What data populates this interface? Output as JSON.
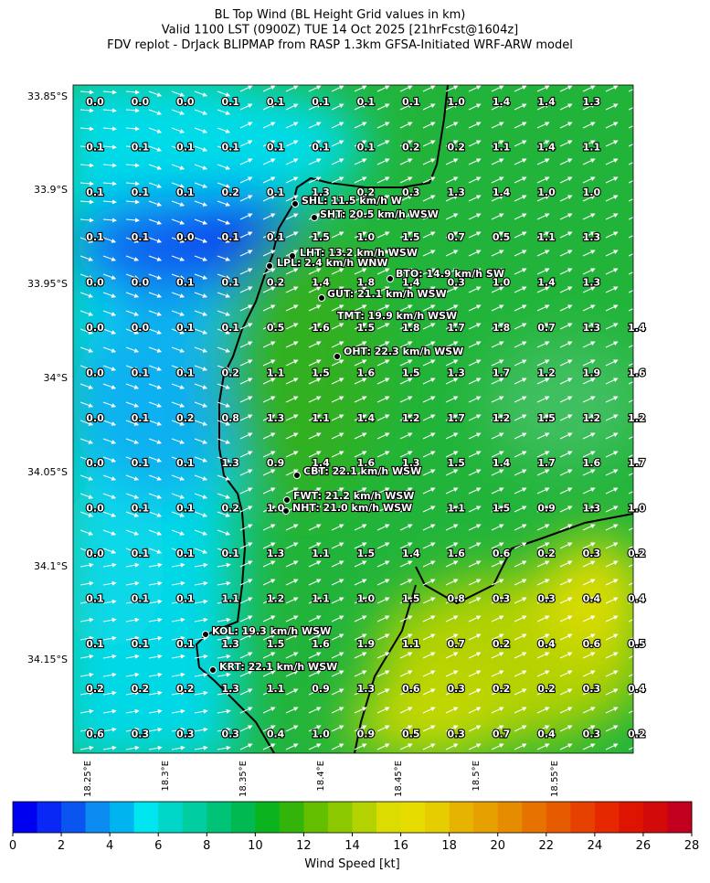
{
  "header": {
    "title_lines": [
      "BL Top Wind (BL Height Grid values in km)",
      "Valid 1100 LST (0900Z) TUE 14 Oct 2025 [21hrFcst@1604z]",
      "FDV replot - DrJack BLIPMAP from RASP 1.3km GFSA-Initiated WRF-ARW model"
    ]
  },
  "lat_labels": [
    "33.85°S",
    "33.9°S",
    "33.95°S",
    "34°S",
    "34.05°S",
    "34.1°S",
    "34.15°S"
  ],
  "lon_labels": [
    "18.25°E",
    "18.3°E",
    "18.35°E",
    "18.4°E",
    "18.45°E",
    "18.5°E",
    "18.55°E"
  ],
  "grid": {
    "rows": [
      [
        "0.0",
        "0.0",
        "0.0",
        "0.1",
        "0.1",
        "0.1",
        "0.1",
        "0.1",
        "1.0",
        "1.4",
        "1.4",
        "1.3",
        null
      ],
      [
        "0.1",
        "0.1",
        "0.1",
        "0.1",
        "0.1",
        "0.1",
        "0.1",
        "0.2",
        "0.2",
        "1.1",
        "1.4",
        "1.1",
        null
      ],
      [
        "0.1",
        "0.1",
        "0.1",
        "0.2",
        "0.1",
        "1.3",
        "0.2",
        "0.3",
        "1.3",
        "1.4",
        "1.0",
        "1.0",
        null
      ],
      [
        "0.1",
        "0.1",
        "0.0",
        "0.1",
        "0.1",
        "1.5",
        "1.0",
        "1.5",
        "0.7",
        "0.5",
        "1.1",
        "1.3",
        null
      ],
      [
        "0.0",
        "0.0",
        "0.1",
        "0.1",
        "0.2",
        "1.4",
        "1.8",
        "1.4",
        "0.3",
        "1.0",
        "1.4",
        "1.3",
        null
      ],
      [
        "0.0",
        "0.0",
        "0.1",
        "0.1",
        "0.5",
        "1.6",
        "1.5",
        "1.8",
        "1.7",
        "1.8",
        "0.7",
        "1.3",
        "1.4"
      ],
      [
        "0.0",
        "0.1",
        "0.1",
        "0.2",
        "1.1",
        "1.5",
        "1.6",
        "1.5",
        "1.3",
        "1.7",
        "1.2",
        "1.9",
        "1.6"
      ],
      [
        "0.0",
        "0.1",
        "0.2",
        "0.8",
        "1.3",
        "1.1",
        "1.4",
        "1.2",
        "1.7",
        "1.2",
        "1.5",
        "1.2",
        "1.2"
      ],
      [
        "0.0",
        "0.1",
        "0.1",
        "1.3",
        "0.9",
        "1.4",
        "1.6",
        "1.3",
        "1.5",
        "1.4",
        "1.7",
        "1.6",
        "1.7"
      ],
      [
        "0.0",
        "0.1",
        "0.1",
        "0.2",
        "1.0",
        null,
        null,
        null,
        "1.1",
        "1.5",
        "0.9",
        "1.3",
        "1.0"
      ],
      [
        "0.0",
        "0.1",
        "0.1",
        "0.1",
        "1.3",
        "1.1",
        "1.5",
        "1.4",
        "1.6",
        "0.6",
        "0.2",
        "0.3",
        "0.2"
      ],
      [
        "0.1",
        "0.1",
        "0.1",
        "1.1",
        "1.2",
        "1.1",
        "1.0",
        "1.5",
        "0.8",
        "0.3",
        "0.3",
        "0.4",
        "0.4"
      ],
      [
        "0.1",
        "0.1",
        "0.1",
        "1.3",
        "1.5",
        "1.6",
        "1.9",
        "1.1",
        "0.7",
        "0.2",
        "0.4",
        "0.6",
        "0.5"
      ],
      [
        "0.2",
        "0.2",
        "0.2",
        "1.3",
        "1.1",
        "0.9",
        "1.3",
        "0.6",
        "0.3",
        "0.2",
        "0.2",
        "0.3",
        "0.4"
      ],
      [
        "0.6",
        "0.3",
        "0.3",
        "0.3",
        "0.4",
        "1.0",
        "0.9",
        "0.5",
        "0.3",
        "0.7",
        "0.4",
        "0.3",
        "0.2"
      ]
    ]
  },
  "stations": [
    {
      "label": "SHL: 11.5 km/h W"
    },
    {
      "label": "SHT: 20.5 km/h WSW"
    },
    {
      "label": "LHT: 13.2 km/h WSW"
    },
    {
      "label": "LPL: 2.4 km/h WNW"
    },
    {
      "label": "BTO: 14.9 km/h SW"
    },
    {
      "label": "GUT: 21.1 km/h WSW"
    },
    {
      "label": "TMT: 19.9 km/h WSW"
    },
    {
      "label": "OHT: 22.3 km/h WSW"
    },
    {
      "label": "CBT: 22.1 km/h WSW"
    },
    {
      "label": "FWT: 21.2 km/h WSW"
    },
    {
      "label": "NHT: 21.0 km/h WSW"
    },
    {
      "label": "KOL: 19.3 km/h WSW"
    },
    {
      "label": "KRT: 22.1 km/h WSW"
    }
  ],
  "colorbar": {
    "label": "Wind Speed [kt]",
    "range": [
      0,
      28
    ],
    "ticks": [
      0,
      2,
      4,
      6,
      8,
      10,
      12,
      14,
      16,
      18,
      20,
      22,
      24,
      26,
      28
    ],
    "colors": [
      "#0000f0",
      "#0a28f5",
      "#0a55f0",
      "#0a8cf0",
      "#00b4f0",
      "#00e6f0",
      "#00d7c8",
      "#00cda0",
      "#00c378",
      "#00b950",
      "#0ab41e",
      "#32b40a",
      "#64be00",
      "#8cc800",
      "#b4d200",
      "#dcdc00",
      "#e6dc00",
      "#e6cd00",
      "#e6b400",
      "#e6a000",
      "#e68c00",
      "#e67300",
      "#e65a00",
      "#e64100",
      "#e62800",
      "#dc1400",
      "#d20a0a",
      "#c3001e"
    ]
  }
}
